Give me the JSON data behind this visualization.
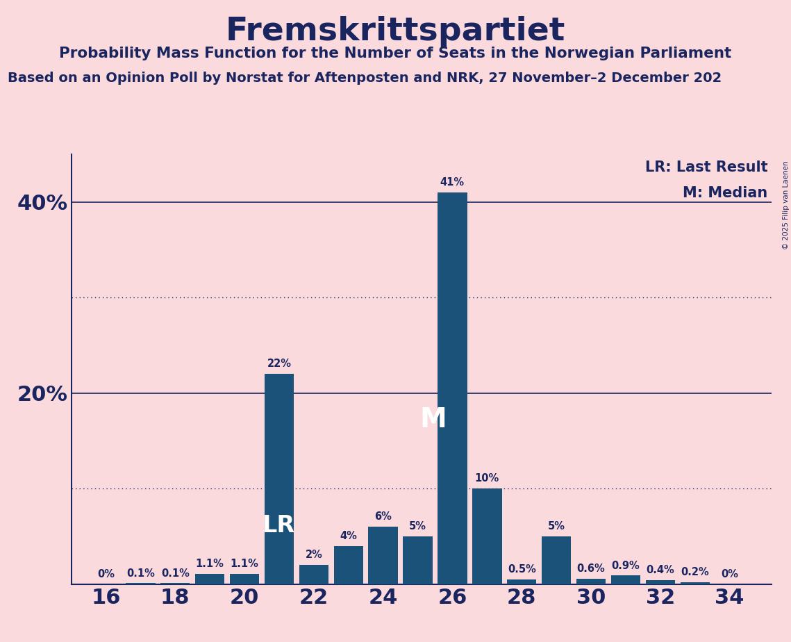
{
  "title": "Fremskrittspartiet",
  "subtitle1": "Probability Mass Function for the Number of Seats in the Norwegian Parliament",
  "subtitle2": "Based on an Opinion Poll by Norstat for Aftenposten and NRK, 27 November–2 December 202",
  "copyright": "© 2025 Filip van Laenen",
  "seats": [
    16,
    17,
    18,
    19,
    20,
    21,
    22,
    23,
    24,
    25,
    26,
    27,
    28,
    29,
    30,
    31,
    32,
    33,
    34
  ],
  "probabilities": [
    0.0,
    0.1,
    0.1,
    1.1,
    1.1,
    22.0,
    2.0,
    4.0,
    6.0,
    5.0,
    41.0,
    10.0,
    0.5,
    5.0,
    0.6,
    0.9,
    0.4,
    0.2,
    0.0
  ],
  "labels": [
    "0%",
    "0.1%",
    "0.1%",
    "1.1%",
    "1.1%",
    "22%",
    "2%",
    "4%",
    "6%",
    "5%",
    "41%",
    "10%",
    "0.5%",
    "5%",
    "0.6%",
    "0.9%",
    "0.4%",
    "0.2%",
    "0%"
  ],
  "bar_color": "#1a527a",
  "background_color": "#fadadd",
  "text_color": "#1a2560",
  "last_result_seat": 21,
  "median_seat": 26,
  "lr_label": "LR",
  "m_label": "M",
  "legend_lr": "LR: Last Result",
  "legend_m": "M: Median",
  "ylim": [
    0,
    45
  ],
  "dotted_lines": [
    10,
    30
  ],
  "solid_lines": [
    20,
    40
  ],
  "ytick_positions": [
    20,
    40
  ],
  "ytick_labels": [
    "20%",
    "40%"
  ],
  "xticks": [
    16,
    18,
    20,
    22,
    24,
    26,
    28,
    30,
    32,
    34
  ]
}
